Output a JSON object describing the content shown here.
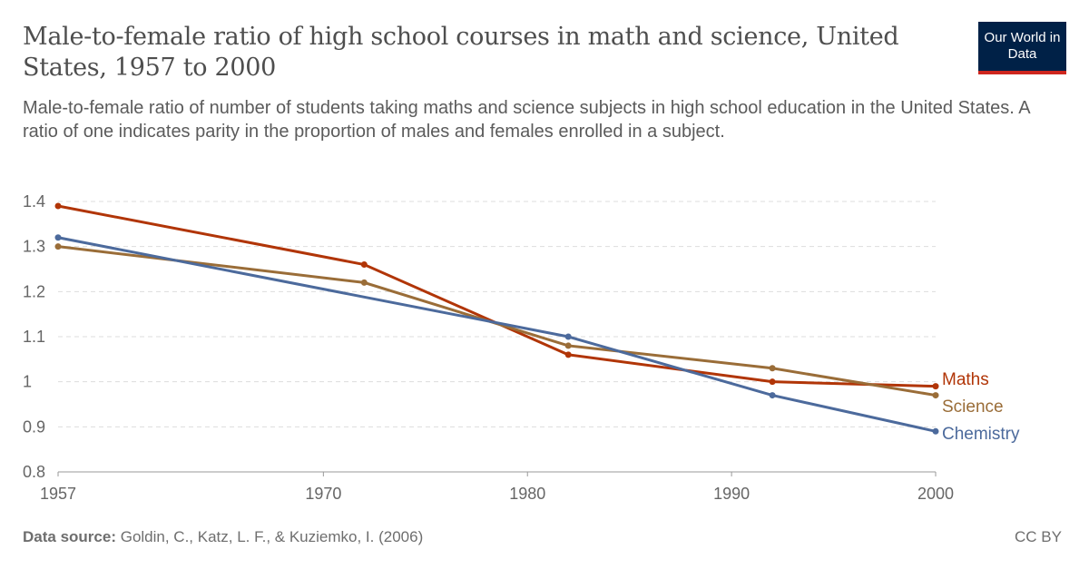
{
  "title": "Male-to-female ratio of high school courses in math and science, United States, 1957 to 2000",
  "subtitle": "Male-to-female ratio of number of students taking maths and science subjects in high school education in the United States. A ratio of one indicates parity in the proportion of males and females enrolled in a subject.",
  "logo": "Our World in Data",
  "footer": {
    "source_label": "Data source:",
    "source": "Goldin, C., Katz, L. F., & Kuziemko, I. (2006)",
    "license": "CC BY"
  },
  "chart_data": {
    "type": "line",
    "xlim": [
      1957,
      2000
    ],
    "ylim": [
      0.8,
      1.4
    ],
    "xticks": [
      1957,
      1970,
      1980,
      1990,
      2000
    ],
    "yticks": [
      0.8,
      0.9,
      1,
      1.1,
      1.2,
      1.3,
      1.4
    ],
    "grid": "horizontal dashed",
    "legend": "end-of-line labels (right)",
    "series": [
      {
        "name": "Maths",
        "color": "#b13507",
        "x": [
          1957,
          1972,
          1982,
          1992,
          2000
        ],
        "y": [
          1.39,
          1.26,
          1.06,
          1.0,
          0.99
        ]
      },
      {
        "name": "Science",
        "color": "#9a6d38",
        "x": [
          1957,
          1972,
          1982,
          1992,
          2000
        ],
        "y": [
          1.3,
          1.22,
          1.08,
          1.03,
          0.97
        ]
      },
      {
        "name": "Chemistry",
        "color": "#4c6a9c",
        "x": [
          1957,
          1982,
          1992,
          2000
        ],
        "y": [
          1.32,
          1.1,
          0.97,
          0.89
        ]
      }
    ]
  }
}
